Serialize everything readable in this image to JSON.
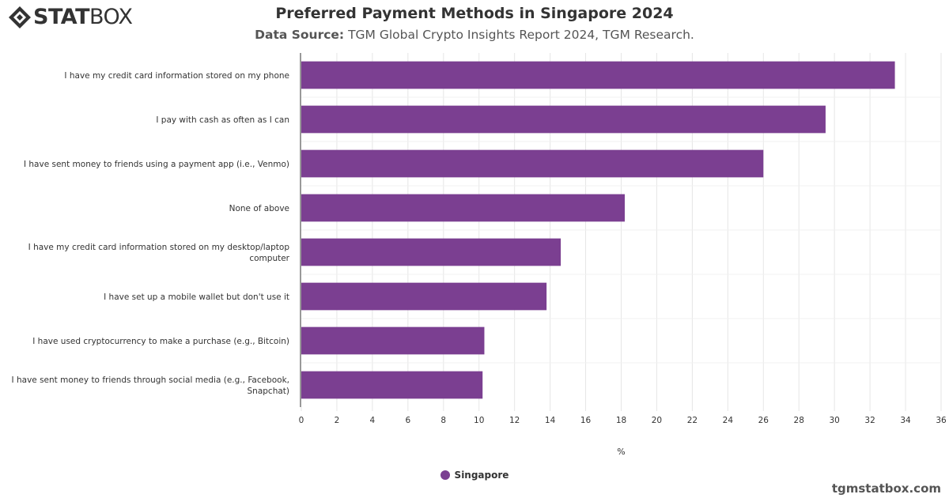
{
  "logo": {
    "text_bold": "STAT",
    "text_light": "BOX",
    "icon": "statbox-diamond-icon"
  },
  "header": {
    "title": "Preferred Payment Methods in Singapore 2024",
    "source_label": "Data Source:",
    "source_text": "TGM Global Crypto Insights Report 2024, TGM Research."
  },
  "colors": {
    "bar": "#7b3f91",
    "grid": "#e6e6e6",
    "axis": "#333333"
  },
  "chart_data": {
    "type": "bar",
    "orientation": "horizontal",
    "categories": [
      [
        "I have my credit card information stored on my phone"
      ],
      [
        "I pay with cash as often as I can"
      ],
      [
        "I have sent money to friends using a payment app (i.e., Venmo)"
      ],
      [
        "None of above"
      ],
      [
        "I have my credit card information stored on my desktop/laptop",
        "computer"
      ],
      [
        "I have set up a mobile wallet but don't use it"
      ],
      [
        "I have used cryptocurrency to make a purchase (e.g., Bitcoin)"
      ],
      [
        "I have sent money to friends through social media (e.g., Facebook,",
        "Snapchat)"
      ]
    ],
    "series": [
      {
        "name": "Singapore",
        "values": [
          33.4,
          29.5,
          26.0,
          18.2,
          14.6,
          13.8,
          10.3,
          10.2
        ]
      }
    ],
    "xlabel": "%",
    "xlim": [
      0,
      36
    ],
    "xticks": [
      "0",
      "2",
      "4",
      "6",
      "8",
      "10",
      "12",
      "14",
      "16",
      "18",
      "20",
      "22",
      "24",
      "26",
      "28",
      "30",
      "32",
      "34",
      "36"
    ],
    "grid": true,
    "legend_position": "bottom"
  },
  "legend": {
    "label": "Singapore"
  },
  "credit": "tgmstatbox.com"
}
